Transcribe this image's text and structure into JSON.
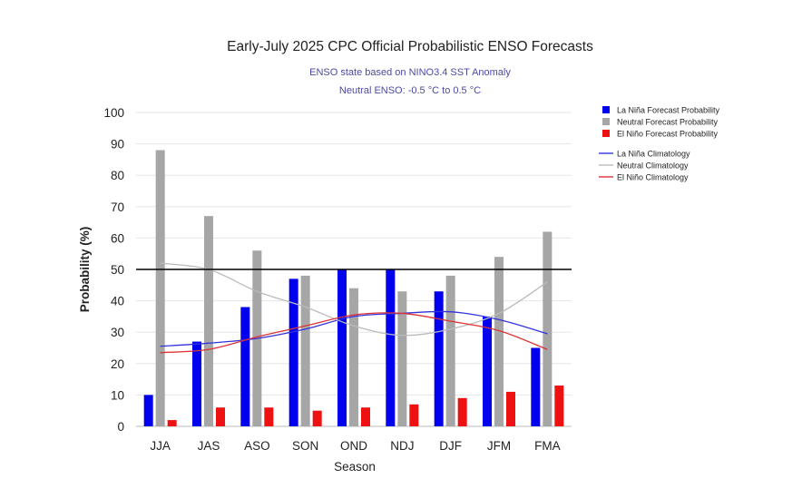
{
  "chart_data": {
    "type": "bar",
    "title": "Early-July 2025 CPC Official Probabilistic ENSO Forecasts",
    "subtitle_line1": "ENSO state based on NINO3.4 SST Anomaly",
    "subtitle_line2": "Neutral ENSO: -0.5 °C to 0.5 °C",
    "xlabel": "Season",
    "ylabel": "Probability (%)",
    "ylim": [
      0,
      100
    ],
    "yticks": [
      0,
      10,
      20,
      30,
      40,
      50,
      60,
      70,
      80,
      90,
      100
    ],
    "reference_line": 50,
    "categories": [
      "JJA",
      "JAS",
      "ASO",
      "SON",
      "OND",
      "NDJ",
      "DJF",
      "JFM",
      "FMA"
    ],
    "series": [
      {
        "name": "La Niña Forecast Probability",
        "color": "#0000ee",
        "values": [
          10,
          27,
          38,
          47,
          50,
          50,
          43,
          35,
          25
        ]
      },
      {
        "name": "Neutral Forecast Probability",
        "color": "#a6a6a6",
        "values": [
          88,
          67,
          56,
          48,
          44,
          43,
          48,
          54,
          62
        ]
      },
      {
        "name": "El Niño Forecast Probability",
        "color": "#ee1111",
        "values": [
          2,
          6,
          6,
          5,
          6,
          7,
          9,
          11,
          13
        ]
      }
    ],
    "climatology": [
      {
        "name": "La Niña Climatology",
        "color": "#3333dd",
        "values": [
          25.5,
          26.5,
          28,
          31,
          35,
          36,
          36.5,
          34,
          29.5
        ]
      },
      {
        "name": "Neutral Climatology",
        "color": "#bbbbbb",
        "values": [
          52,
          50,
          43,
          38,
          32,
          29,
          31,
          36,
          46
        ]
      },
      {
        "name": "El Niño Climatology",
        "color": "#dd3333",
        "values": [
          23.5,
          24.5,
          28.5,
          32,
          35.5,
          36,
          33.5,
          30.5,
          24.5
        ]
      }
    ],
    "legend_position": "right",
    "grid": true
  }
}
